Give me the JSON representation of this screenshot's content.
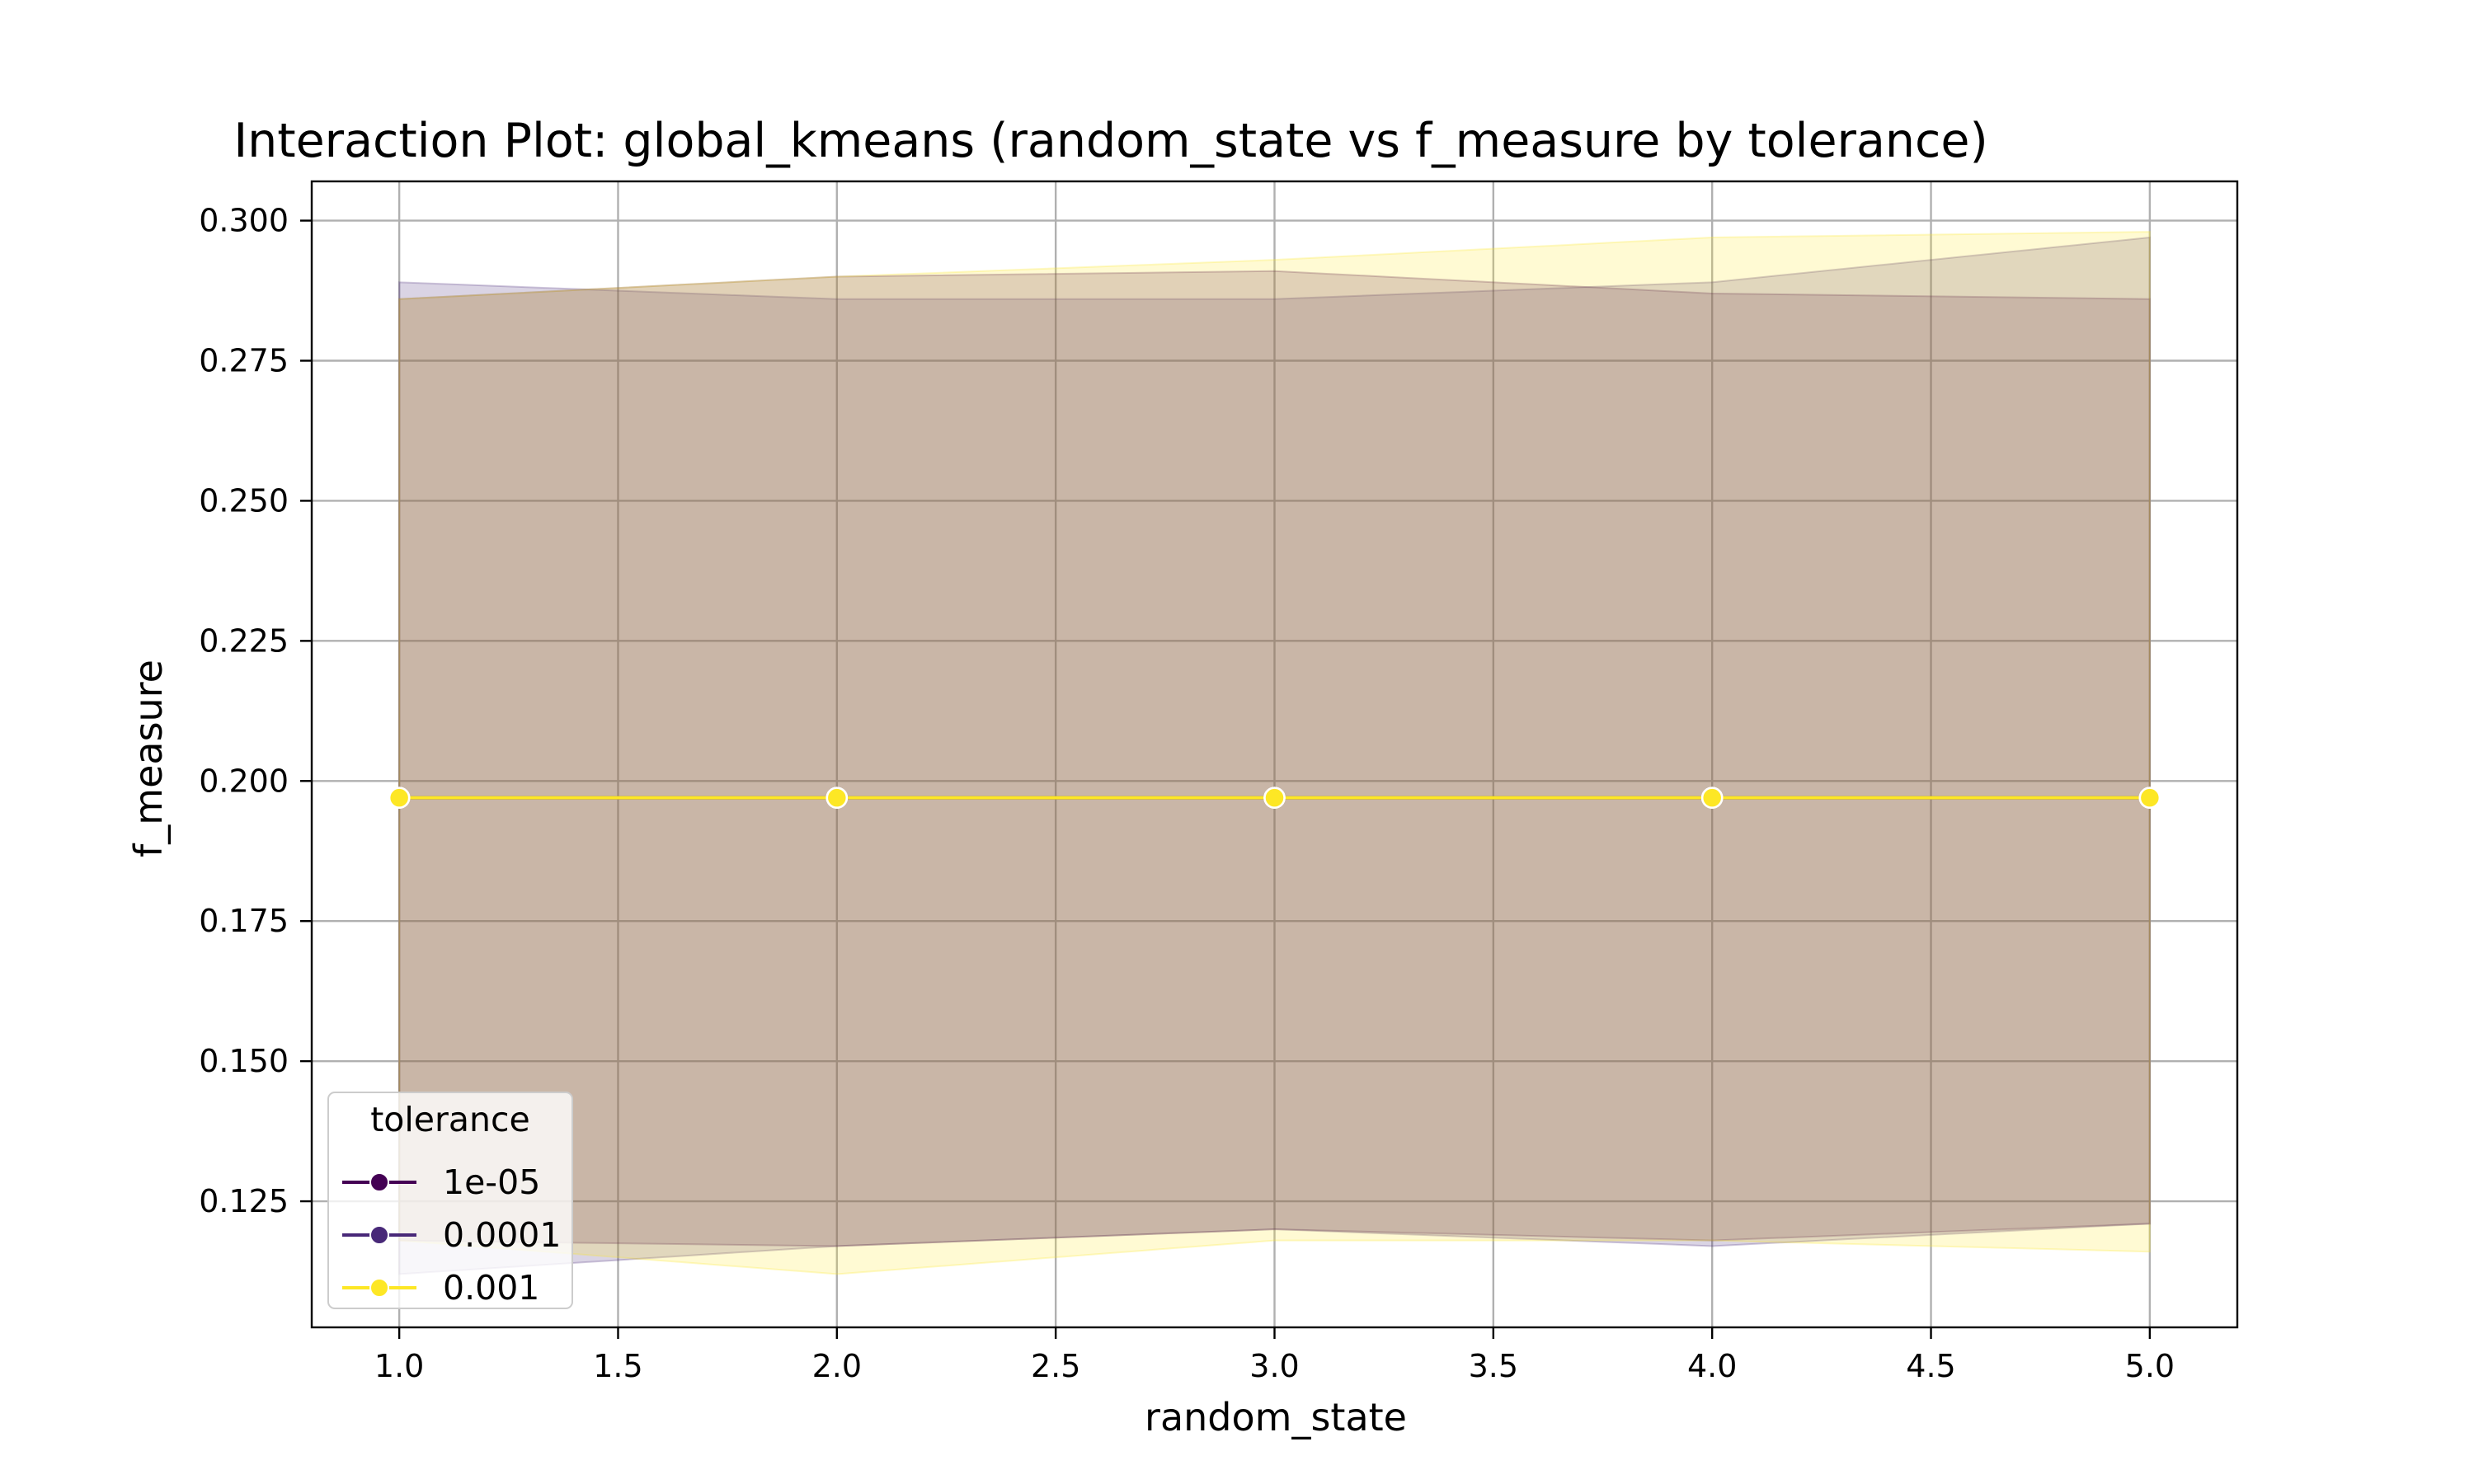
{
  "chart_data": {
    "type": "line",
    "title": "Interaction Plot: global_kmeans (random_state vs f_measure by tolerance)",
    "xlabel": "random_state",
    "ylabel": "f_measure",
    "x": [
      1.0,
      2.0,
      3.0,
      4.0,
      5.0
    ],
    "xlim": [
      0.8,
      5.2
    ],
    "ylim": [
      0.1025,
      0.307
    ],
    "xticks": [
      "1.0",
      "1.5",
      "2.0",
      "2.5",
      "3.0",
      "3.5",
      "4.0",
      "4.5",
      "5.0"
    ],
    "yticks": [
      "0.125",
      "0.150",
      "0.175",
      "0.200",
      "0.225",
      "0.250",
      "0.275",
      "0.300"
    ],
    "grid": true,
    "legend": {
      "title": "tolerance",
      "placement": "lower-left"
    },
    "series": [
      {
        "name": "1e-05",
        "color": "#440154",
        "values": [
          0.197,
          0.197,
          0.197,
          0.197,
          0.197
        ],
        "ci_lower": [
          0.118,
          0.117,
          0.12,
          0.118,
          0.121
        ],
        "ci_upper": [
          0.286,
          0.29,
          0.291,
          0.287,
          0.286
        ]
      },
      {
        "name": "0.0001",
        "color": "#482878",
        "values": [
          0.197,
          0.197,
          0.197,
          0.197,
          0.197
        ],
        "ci_lower": [
          0.112,
          0.117,
          0.12,
          0.117,
          0.121
        ],
        "ci_upper": [
          0.289,
          0.286,
          0.286,
          0.289,
          0.297
        ]
      },
      {
        "name": "0.001",
        "color": "#fde725",
        "values": [
          0.197,
          0.197,
          0.197,
          0.197,
          0.197
        ],
        "ci_lower": [
          0.118,
          0.112,
          0.118,
          0.118,
          0.116
        ],
        "ci_upper": [
          0.286,
          0.29,
          0.293,
          0.297,
          0.298
        ]
      }
    ]
  }
}
